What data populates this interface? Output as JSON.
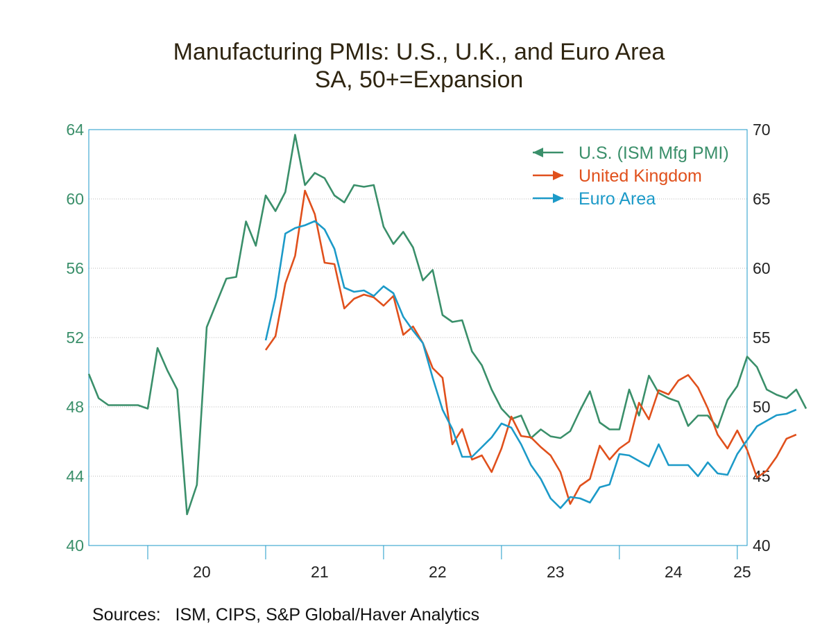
{
  "chart_data": {
    "type": "line",
    "title": "Manufacturing PMIs: U.S., U.K., and Euro Area",
    "subtitle": "SA, 50+=Expansion",
    "source": "Sources:   ISM, CIPS, S&P Global/Haver Analytics",
    "left_axis": {
      "ylim": [
        40,
        64
      ],
      "ticks": [
        "40",
        "44",
        "48",
        "52",
        "56",
        "60",
        "64"
      ],
      "color": "#3a8f6a"
    },
    "right_axis": {
      "ylim": [
        40,
        70
      ],
      "ticks": [
        "40",
        "45",
        "50",
        "55",
        "60",
        "65",
        "70"
      ],
      "color": "#222222"
    },
    "x_axis": {
      "start": "2019-07",
      "end": "2025-02",
      "year_labels": [
        "20",
        "21",
        "22",
        "23",
        "24",
        "25"
      ]
    },
    "legend_position": "top-right",
    "series": [
      {
        "name": "U.S. (ISM Mfg PMI)",
        "axis": "left",
        "color": "#3a8f6a",
        "arrow": "left",
        "start": "2019-07",
        "values": [
          49.9,
          48.5,
          48.1,
          48.1,
          48.1,
          48.1,
          47.9,
          51.4,
          50.1,
          49.0,
          41.8,
          43.5,
          52.6,
          54.0,
          55.4,
          55.5,
          58.7,
          57.3,
          60.2,
          59.3,
          60.4,
          63.7,
          60.8,
          61.5,
          61.2,
          60.2,
          59.8,
          60.8,
          60.7,
          60.8,
          58.4,
          57.4,
          58.1,
          57.2,
          55.3,
          55.9,
          53.3,
          52.9,
          53.0,
          51.2,
          50.4,
          49.0,
          47.9,
          47.3,
          47.5,
          46.2,
          46.7,
          46.3,
          46.2,
          46.6,
          47.8,
          48.9,
          47.1,
          46.7,
          46.7,
          49.0,
          47.5,
          49.8,
          48.8,
          48.5,
          48.3,
          46.9,
          47.5,
          47.5,
          46.8,
          48.4,
          49.2,
          50.9,
          50.3,
          49.0,
          48.7,
          48.5,
          49.0,
          47.9
        ]
      },
      {
        "name": "United Kingdom",
        "axis": "right",
        "color": "#e0501c",
        "arrow": "right",
        "start": "2021-01",
        "values": [
          54.1,
          55.1,
          58.9,
          60.9,
          65.6,
          63.9,
          60.4,
          60.3,
          57.1,
          57.8,
          58.1,
          57.9,
          57.3,
          58.0,
          55.2,
          55.8,
          54.6,
          52.8,
          52.1,
          47.3,
          48.4,
          46.2,
          46.5,
          45.3,
          47.0,
          49.3,
          47.9,
          47.8,
          47.1,
          46.5,
          45.3,
          43.0,
          44.3,
          44.8,
          47.2,
          46.2,
          47.0,
          47.5,
          50.3,
          49.1,
          51.2,
          50.9,
          51.9,
          52.3,
          51.4,
          49.9,
          48.0,
          47.0,
          48.3,
          46.9,
          44.9,
          45.4,
          46.4,
          47.7,
          48.0
        ]
      },
      {
        "name": "Euro Area",
        "axis": "right",
        "color": "#1c9ac8",
        "arrow": "right",
        "start": "2021-01",
        "values": [
          54.8,
          57.9,
          62.5,
          62.9,
          63.1,
          63.4,
          62.8,
          61.4,
          58.6,
          58.3,
          58.4,
          58.0,
          58.7,
          58.2,
          56.5,
          55.5,
          54.6,
          52.1,
          49.8,
          48.4,
          46.4,
          46.4,
          47.1,
          47.8,
          48.8,
          48.5,
          47.3,
          45.8,
          44.8,
          43.4,
          42.7,
          43.5,
          43.4,
          43.1,
          44.2,
          44.4,
          46.6,
          46.5,
          46.1,
          45.7,
          47.3,
          45.8,
          45.8,
          45.8,
          45.0,
          46.0,
          45.2,
          45.1,
          46.6,
          47.6,
          48.6,
          49.0,
          49.4,
          49.5,
          49.8
        ]
      }
    ]
  }
}
